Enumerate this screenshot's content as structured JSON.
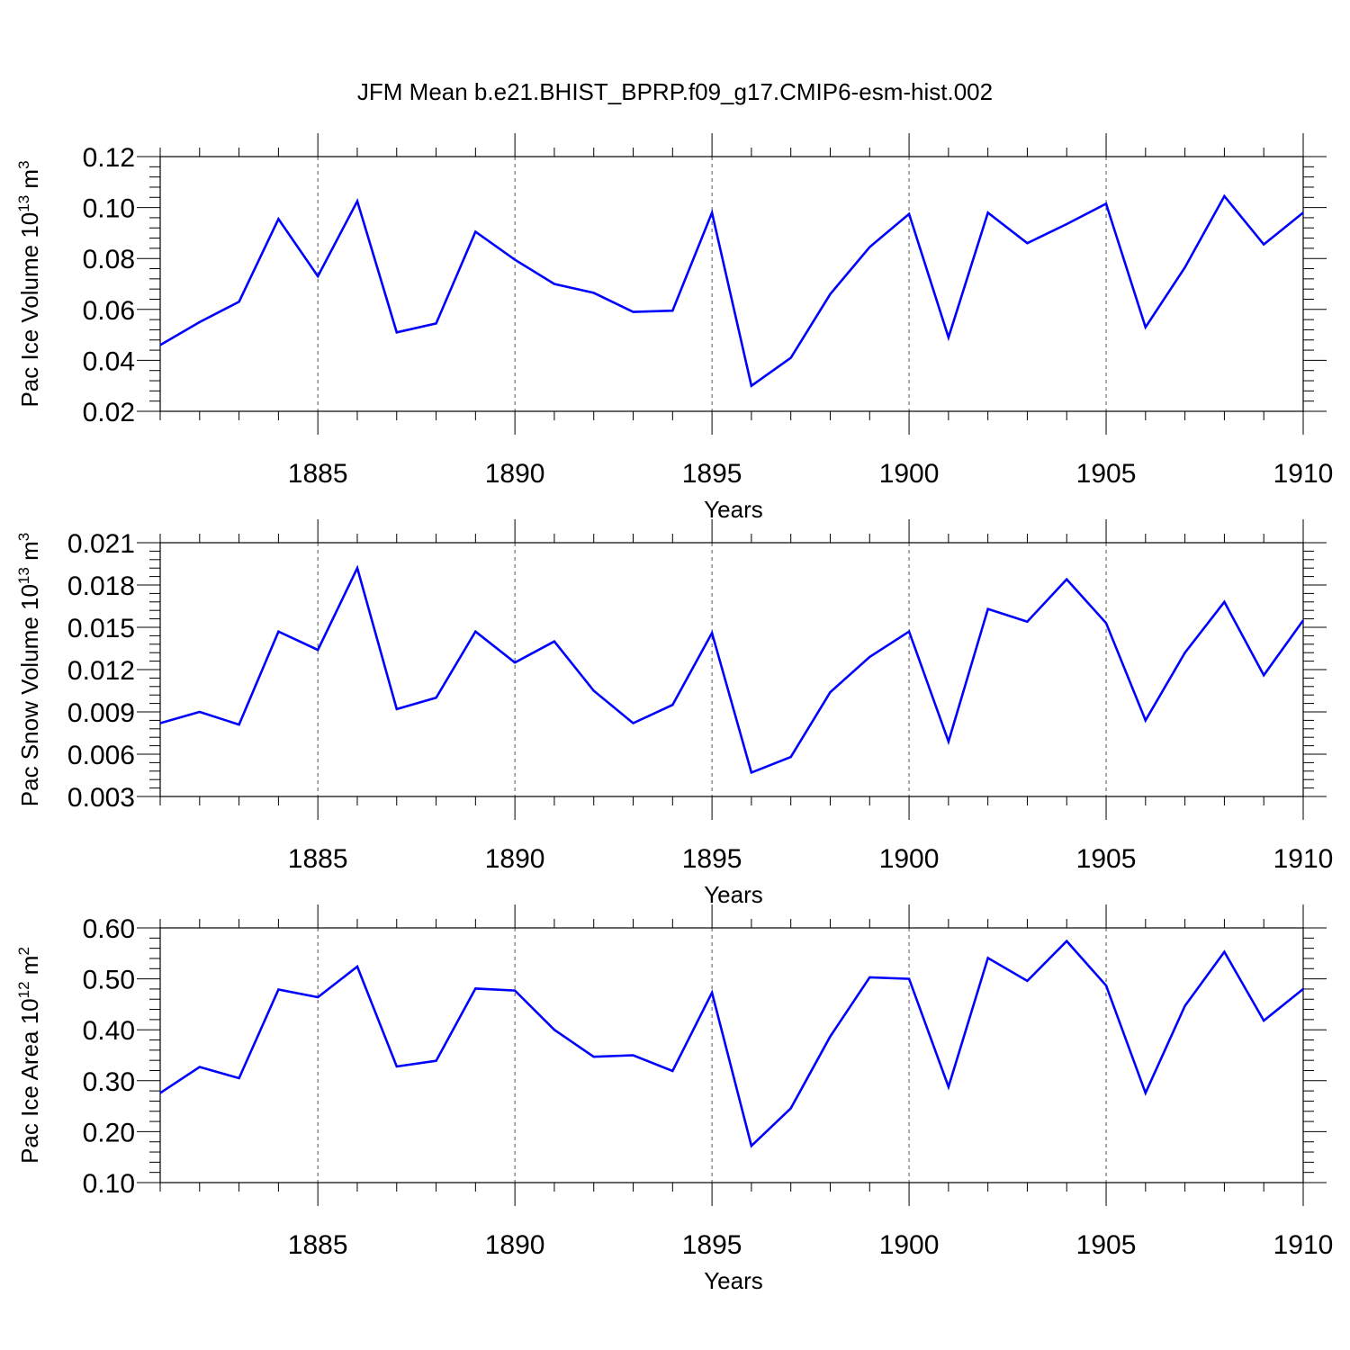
{
  "title": "JFM Mean b.e21.BHIST_BPRP.f09_g17.CMIP6-esm-hist.002",
  "chart_data": [
    {
      "type": "line",
      "xlabel": "Years",
      "ylabel": "Pac Ice Volume 10",
      "ylabel_sup": "13",
      "ylabel_unit": " m",
      "ylabel_unit_sup": "3",
      "xlim": [
        1881,
        1910
      ],
      "ylim": [
        0.02,
        0.12
      ],
      "xticks": [
        1885,
        1890,
        1895,
        1900,
        1905,
        1910
      ],
      "xtick_labels": [
        "1885",
        "1890",
        "1895",
        "1900",
        "1905",
        "1910"
      ],
      "yticks": [
        0.02,
        0.04,
        0.06,
        0.08,
        0.1,
        0.12
      ],
      "ytick_labels": [
        "0.02",
        "0.04",
        "0.06",
        "0.08",
        "0.10",
        "0.12"
      ],
      "grid": "vertical dashed at major x ticks",
      "line_color": "#0000ff",
      "x": [
        1881,
        1882,
        1883,
        1884,
        1885,
        1886,
        1887,
        1888,
        1889,
        1890,
        1891,
        1892,
        1893,
        1894,
        1895,
        1896,
        1897,
        1898,
        1899,
        1900,
        1901,
        1902,
        1903,
        1904,
        1905,
        1906,
        1907,
        1908,
        1909,
        1910
      ],
      "y": [
        0.046,
        0.055,
        0.063,
        0.0955,
        0.073,
        0.1025,
        0.051,
        0.0545,
        0.0905,
        0.0795,
        0.07,
        0.0665,
        0.059,
        0.0595,
        0.098,
        0.03,
        0.041,
        0.066,
        0.0845,
        0.0975,
        0.049,
        0.098,
        0.086,
        0.0935,
        0.1015,
        0.053,
        0.0765,
        0.1045,
        0.0855,
        0.098
      ]
    },
    {
      "type": "line",
      "xlabel": "Years",
      "ylabel": "Pac Snow Volume 10",
      "ylabel_sup": "13",
      "ylabel_unit": " m",
      "ylabel_unit_sup": "3",
      "xlim": [
        1881,
        1910
      ],
      "ylim": [
        0.003,
        0.021
      ],
      "xticks": [
        1885,
        1890,
        1895,
        1900,
        1905,
        1910
      ],
      "xtick_labels": [
        "1885",
        "1890",
        "1895",
        "1900",
        "1905",
        "1910"
      ],
      "yticks": [
        0.003,
        0.006,
        0.009,
        0.012,
        0.015,
        0.018,
        0.021
      ],
      "ytick_labels": [
        "0.003",
        "0.006",
        "0.009",
        "0.012",
        "0.015",
        "0.018",
        "0.021"
      ],
      "grid": "vertical dashed at major x ticks",
      "line_color": "#0000ff",
      "x": [
        1881,
        1882,
        1883,
        1884,
        1885,
        1886,
        1887,
        1888,
        1889,
        1890,
        1891,
        1892,
        1893,
        1894,
        1895,
        1896,
        1897,
        1898,
        1899,
        1900,
        1901,
        1902,
        1903,
        1904,
        1905,
        1906,
        1907,
        1908,
        1909,
        1910
      ],
      "y": [
        0.0082,
        0.009,
        0.0081,
        0.0147,
        0.0134,
        0.0192,
        0.0092,
        0.01,
        0.0147,
        0.0125,
        0.014,
        0.0105,
        0.0082,
        0.0095,
        0.0146,
        0.0047,
        0.0058,
        0.0104,
        0.0129,
        0.0147,
        0.0069,
        0.0163,
        0.0154,
        0.0184,
        0.0153,
        0.0084,
        0.0132,
        0.0168,
        0.0116,
        0.0155
      ]
    },
    {
      "type": "line",
      "xlabel": "Years",
      "ylabel": "Pac Ice Area 10",
      "ylabel_sup": "12",
      "ylabel_unit": " m",
      "ylabel_unit_sup": "2",
      "xlim": [
        1881,
        1910
      ],
      "ylim": [
        0.1,
        0.6
      ],
      "xticks": [
        1885,
        1890,
        1895,
        1900,
        1905,
        1910
      ],
      "xtick_labels": [
        "1885",
        "1890",
        "1895",
        "1900",
        "1905",
        "1910"
      ],
      "yticks": [
        0.1,
        0.2,
        0.3,
        0.4,
        0.5,
        0.6
      ],
      "ytick_labels": [
        "0.10",
        "0.20",
        "0.30",
        "0.40",
        "0.50",
        "0.60"
      ],
      "grid": "vertical dashed at major x ticks",
      "line_color": "#0000ff",
      "x": [
        1881,
        1882,
        1883,
        1884,
        1885,
        1886,
        1887,
        1888,
        1889,
        1890,
        1891,
        1892,
        1893,
        1894,
        1895,
        1896,
        1897,
        1898,
        1899,
        1900,
        1901,
        1902,
        1903,
        1904,
        1905,
        1906,
        1907,
        1908,
        1909,
        1910
      ],
      "y": [
        0.276,
        0.327,
        0.305,
        0.479,
        0.464,
        0.524,
        0.328,
        0.339,
        0.481,
        0.477,
        0.4,
        0.347,
        0.35,
        0.319,
        0.473,
        0.172,
        0.246,
        0.387,
        0.503,
        0.5,
        0.288,
        0.541,
        0.496,
        0.574,
        0.487,
        0.276,
        0.447,
        0.553,
        0.418,
        0.48
      ]
    }
  ]
}
